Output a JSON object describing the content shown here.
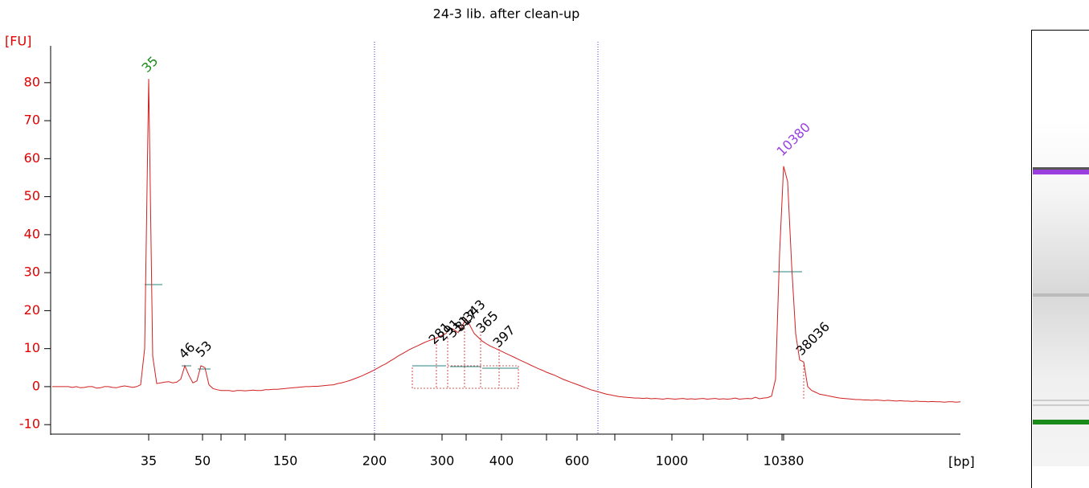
{
  "chart_data": {
    "type": "line",
    "title": "24-3 lib. after clean-up",
    "y_label": "[FU]",
    "x_label": "[bp]",
    "color": "#d02020",
    "ylim": [
      -12.5,
      89.7
    ],
    "yticks": [
      -10,
      0,
      10,
      20,
      30,
      40,
      50,
      60,
      70,
      80
    ],
    "x_tick_labels": [
      "35",
      "50",
      "150",
      "200",
      "300",
      "400",
      "600",
      "1000",
      "10380"
    ],
    "peaks": [
      {
        "label": "35",
        "color": "#1a8a1a"
      },
      {
        "label": "46",
        "color": "#000000"
      },
      {
        "label": "53",
        "color": "#000000"
      },
      {
        "label": "281",
        "color": "#000000"
      },
      {
        "label": "291",
        "color": "#000000"
      },
      {
        "label": "311",
        "color": "#000000"
      },
      {
        "label": "317",
        "color": "#000000"
      },
      {
        "label": "343",
        "color": "#000000"
      },
      {
        "label": "365",
        "color": "#000000"
      },
      {
        "label": "397",
        "color": "#000000"
      },
      {
        "label": "10380",
        "color": "#9a3ee0"
      },
      {
        "label": "38036",
        "color": "#000000"
      }
    ],
    "values": [
      0,
      0,
      0,
      0,
      0,
      -0.2,
      0,
      -0.3,
      -0.2,
      0,
      0,
      -0.4,
      -0.3,
      0,
      0,
      -0.2,
      -0.3,
      0,
      0.2,
      0,
      -0.2,
      0,
      0.5,
      10,
      81,
      8,
      0.8,
      1,
      1.2,
      1.3,
      1,
      1.2,
      2,
      5.5,
      3,
      1,
      1.5,
      5.5,
      5,
      0.5,
      -0.5,
      -0.8,
      -1,
      -1,
      -1,
      -1.2,
      -1,
      -1,
      -1.1,
      -1,
      -0.9,
      -1,
      -1,
      -0.8,
      -0.8,
      -0.7,
      -0.7,
      -0.6,
      -0.5,
      -0.4,
      -0.3,
      -0.2,
      -0.1,
      0,
      0,
      0.1,
      0.1,
      0.2,
      0.3,
      0.4,
      0.5,
      0.8,
      1,
      1.3,
      1.6,
      2,
      2.4,
      2.8,
      3.3,
      3.8,
      4.3,
      4.9,
      5.5,
      6,
      6.7,
      7.3,
      8,
      8.6,
      9.2,
      9.8,
      10.3,
      10.8,
      11.3,
      11.8,
      12.2,
      12.6,
      13,
      13.5,
      14,
      15.5,
      15,
      14.2,
      16,
      17.8,
      16,
      14,
      13,
      12,
      11.3,
      10.7,
      10.2,
      9.7,
      9.2,
      8.7,
      8.2,
      7.7,
      7.2,
      6.7,
      6.2,
      5.7,
      5.2,
      4.7,
      4.3,
      3.8,
      3.4,
      3,
      2.5,
      2,
      1.6,
      1.2,
      0.8,
      0.4,
      0,
      -0.4,
      -0.8,
      -1.1,
      -1.4,
      -1.7,
      -2,
      -2.2,
      -2.4,
      -2.6,
      -2.7,
      -2.8,
      -2.9,
      -3,
      -3,
      -3.1,
      -3,
      -3.2,
      -3.1,
      -3.2,
      -3.3,
      -3.1,
      -3.2,
      -3.3,
      -3.2,
      -3.1,
      -3.3,
      -3.2,
      -3.3,
      -3.2,
      -3.1,
      -3.3,
      -3.2,
      -3.1,
      -3.3,
      -3.2,
      -3.3,
      -3.2,
      -3,
      -3.3,
      -3.2,
      -3.1,
      -3.2,
      -2.8,
      -3.2,
      -3,
      -2.9,
      -2.5,
      2,
      35,
      58,
      54,
      32,
      14,
      7,
      6.5,
      0,
      -1,
      -1.5,
      -2,
      -2.2,
      -2.4,
      -2.6,
      -2.8,
      -3,
      -3.1,
      -3.2,
      -3.3,
      -3.4,
      -3.4,
      -3.5,
      -3.5,
      -3.6,
      -3.5,
      -3.6,
      -3.7,
      -3.6,
      -3.7,
      -3.8,
      -3.7,
      -3.8,
      -3.8,
      -3.9,
      -3.8,
      -3.9,
      -3.9,
      -4,
      -3.9,
      -4,
      -4,
      -4.1,
      -4,
      -4,
      -4.1,
      -4
    ]
  }
}
